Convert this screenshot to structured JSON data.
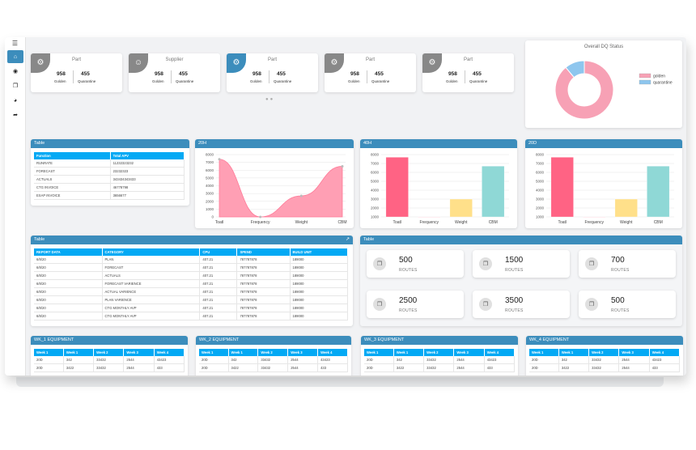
{
  "sidebar": {
    "menu_icon": "menu-icon",
    "items": [
      "home-icon",
      "dashboard-icon",
      "copy-icon",
      "chart-icon",
      "redo-icon"
    ]
  },
  "kpis": [
    {
      "title": "Part",
      "icon": "gears-icon",
      "v1": "958",
      "l1": "Golden",
      "v2": "455",
      "l2": "Quarantine",
      "accent": "#888888"
    },
    {
      "title": "Supplier",
      "icon": "user-icon",
      "v1": "958",
      "l1": "Golden",
      "v2": "455",
      "l2": "Quarantine",
      "accent": "#888888"
    },
    {
      "title": "Part",
      "icon": "gears-icon",
      "v1": "958",
      "l1": "Golden",
      "v2": "455",
      "l2": "Quarantine",
      "accent": "#3c8dbc"
    },
    {
      "title": "Part",
      "icon": "gears-icon",
      "v1": "958",
      "l1": "Golden",
      "v2": "455",
      "l2": "Quarantine",
      "accent": "#888888"
    },
    {
      "title": "Part",
      "icon": "gears-icon",
      "v1": "958",
      "l1": "Golden",
      "v2": "455",
      "l2": "Quarantine",
      "accent": "#888888"
    }
  ],
  "donut": {
    "title": "Overall DQ Status",
    "legend": [
      {
        "name": "golden",
        "color": "#f7a1b5"
      },
      {
        "name": "quarantine",
        "color": "#8ec6ee"
      }
    ],
    "chart_data": {
      "type": "pie",
      "categories": [
        "golden",
        "quarantine"
      ],
      "values": [
        89,
        11
      ],
      "title": "Overall DQ Status"
    }
  },
  "table1": {
    "title": "Table",
    "headers": [
      "Function",
      "Total APV"
    ],
    "rows": [
      [
        "RUNRATE",
        "11232323232"
      ],
      [
        "FORECAST",
        "23232323"
      ],
      [
        "ACTUALS",
        "343434343433"
      ],
      [
        "CTG INVOICE",
        "46778798"
      ],
      [
        "ESAP INVOICE",
        "3656677"
      ]
    ]
  },
  "charts": [
    {
      "title": "20H",
      "chart_data": {
        "type": "area",
        "categories": [
          "Toatl",
          "Frequency",
          "Weight",
          "CBM"
        ],
        "values": [
          7400,
          0,
          2700,
          6500
        ],
        "ylim": [
          0,
          8000
        ],
        "yticks": [
          "0",
          "1000",
          "2000",
          "3000",
          "4000",
          "5000",
          "6000",
          "7000",
          "8000"
        ]
      }
    },
    {
      "title": "40H",
      "chart_data": {
        "type": "bar",
        "categories": [
          "Toatl",
          "Frequency",
          "Weight",
          "CBM"
        ],
        "values": [
          7700,
          1000,
          3000,
          6700
        ],
        "ylim": [
          1000,
          8000
        ],
        "yticks": [
          "1000",
          "2000",
          "3000",
          "4000",
          "5000",
          "6000",
          "7000",
          "8000"
        ]
      }
    },
    {
      "title": "20D",
      "chart_data": {
        "type": "bar",
        "categories": [
          "Toatl",
          "Frequency",
          "Weight",
          "CBM"
        ],
        "values": [
          7700,
          1000,
          3000,
          6700
        ],
        "ylim": [
          1000,
          8000
        ],
        "yticks": [
          "1000",
          "2000",
          "3000",
          "4000",
          "5000",
          "6000",
          "7000",
          "8000"
        ]
      }
    }
  ],
  "bar_colors": [
    "#ff6384",
    "#ff9fb4",
    "#ffe08a",
    "#8fd8d6"
  ],
  "table2": {
    "title": "Table",
    "export_icon": "external-link-icon",
    "headers": [
      "REPORT DATA",
      "CATEGORY",
      "CPU",
      "SPEND",
      "BUILD UNIT"
    ],
    "rows": [
      [
        "6/8/20",
        "PLAN",
        "407.21",
        "787787878",
        "189000"
      ],
      [
        "6/8/20",
        "FORECAST",
        "407.21",
        "787787878",
        "189000"
      ],
      [
        "6/8/20",
        "ACTUALS",
        "407.21",
        "787787878",
        "189000"
      ],
      [
        "6/8/20",
        "FORECAST VARIENCE",
        "407.21",
        "787787878",
        "189000"
      ],
      [
        "6/8/20",
        "ACTUAL VARIENCE",
        "407.21",
        "787787878",
        "189000"
      ],
      [
        "6/8/20",
        "PLAN VARIENCE",
        "407.21",
        "787787878",
        "189000"
      ],
      [
        "6/8/20",
        "CTG MONTHLY AVP",
        "407.21",
        "787787878",
        "189000"
      ],
      [
        "6/8/20",
        "CTG MONTHLY AVP",
        "407.21",
        "787787878",
        "189000"
      ]
    ]
  },
  "routes": {
    "title": "Table",
    "items": [
      {
        "value": "500",
        "label": "ROUTES"
      },
      {
        "value": "1500",
        "label": "ROUTES"
      },
      {
        "value": "700",
        "label": "ROUTES"
      },
      {
        "value": "2500",
        "label": "ROUTES"
      },
      {
        "value": "3500",
        "label": "ROUTES"
      },
      {
        "value": "500",
        "label": "ROUTES"
      }
    ],
    "icon": "bookmark-icon"
  },
  "equipment": [
    {
      "title": "WK_1 EQUIPMENT",
      "headers": [
        "Week 1",
        "Week 1",
        "Week 2",
        "Week 3",
        "Week 4"
      ],
      "rows": [
        [
          "20D",
          "342",
          "33432",
          "2544",
          "43423"
        ],
        [
          "20D",
          "3422",
          "33432",
          "2544",
          "433"
        ]
      ]
    },
    {
      "title": "WK_2 EQUIPMENT",
      "headers": [
        "Week 1",
        "Week 1",
        "Week 2",
        "Week 3",
        "Week 4"
      ],
      "rows": [
        [
          "20D",
          "342",
          "33432",
          "2544",
          "43423"
        ],
        [
          "20D",
          "3422",
          "33432",
          "2544",
          "433"
        ]
      ]
    },
    {
      "title": "WK_3 EQUIPMENT",
      "headers": [
        "Week 1",
        "Week 1",
        "Week 2",
        "Week 3",
        "Week 4"
      ],
      "rows": [
        [
          "20D",
          "342",
          "33432",
          "2544",
          "43423"
        ],
        [
          "20D",
          "3422",
          "33432",
          "2544",
          "433"
        ]
      ]
    },
    {
      "title": "WK_4 EQUIPMENT",
      "headers": [
        "Week 1",
        "Week 1",
        "Week 2",
        "Week 3",
        "Week 4"
      ],
      "rows": [
        [
          "20D",
          "342",
          "33432",
          "2544",
          "43423"
        ],
        [
          "20D",
          "3422",
          "33432",
          "2544",
          "433"
        ]
      ]
    }
  ]
}
